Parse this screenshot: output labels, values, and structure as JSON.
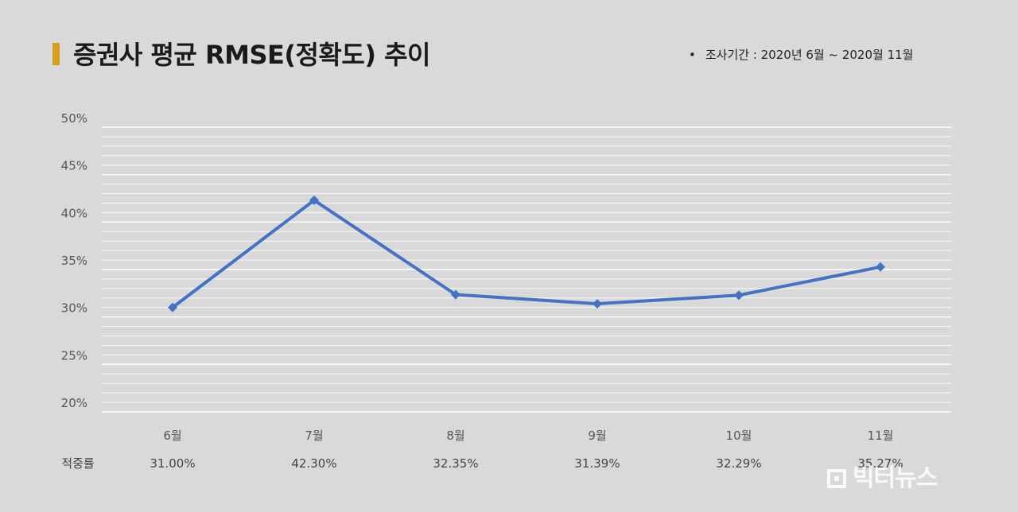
{
  "header": {
    "title": "증권사 평균 RMSE(정확도) 추이",
    "period_bullet": "•",
    "period": "조사기간 : 2020년 6월 ~ 2020월 11월"
  },
  "table": {
    "row_label": "적중률"
  },
  "watermark": {
    "text": "빅터뉴스"
  },
  "colors": {
    "background": "#d9d9d9",
    "line": "#4472c4",
    "grid": "#ffffff",
    "title_accent": "#d4a017"
  },
  "chart_data": {
    "type": "line",
    "title": "증권사 평균 RMSE(정확도) 추이",
    "categories": [
      "6월",
      "7월",
      "8월",
      "9월",
      "10월",
      "11월"
    ],
    "values": [
      31.0,
      42.3,
      32.35,
      31.39,
      32.29,
      35.27
    ],
    "value_labels": [
      "31.00%",
      "42.30%",
      "32.35%",
      "31.39%",
      "32.29%",
      "35.27%"
    ],
    "y_ticks": [
      "20%",
      "25%",
      "30%",
      "35%",
      "40%",
      "45%",
      "50%"
    ],
    "y_tick_values": [
      20,
      25,
      30,
      35,
      40,
      45,
      50
    ],
    "ylim": [
      20,
      50
    ],
    "grid": true,
    "legend": "none",
    "marker": "diamond"
  }
}
